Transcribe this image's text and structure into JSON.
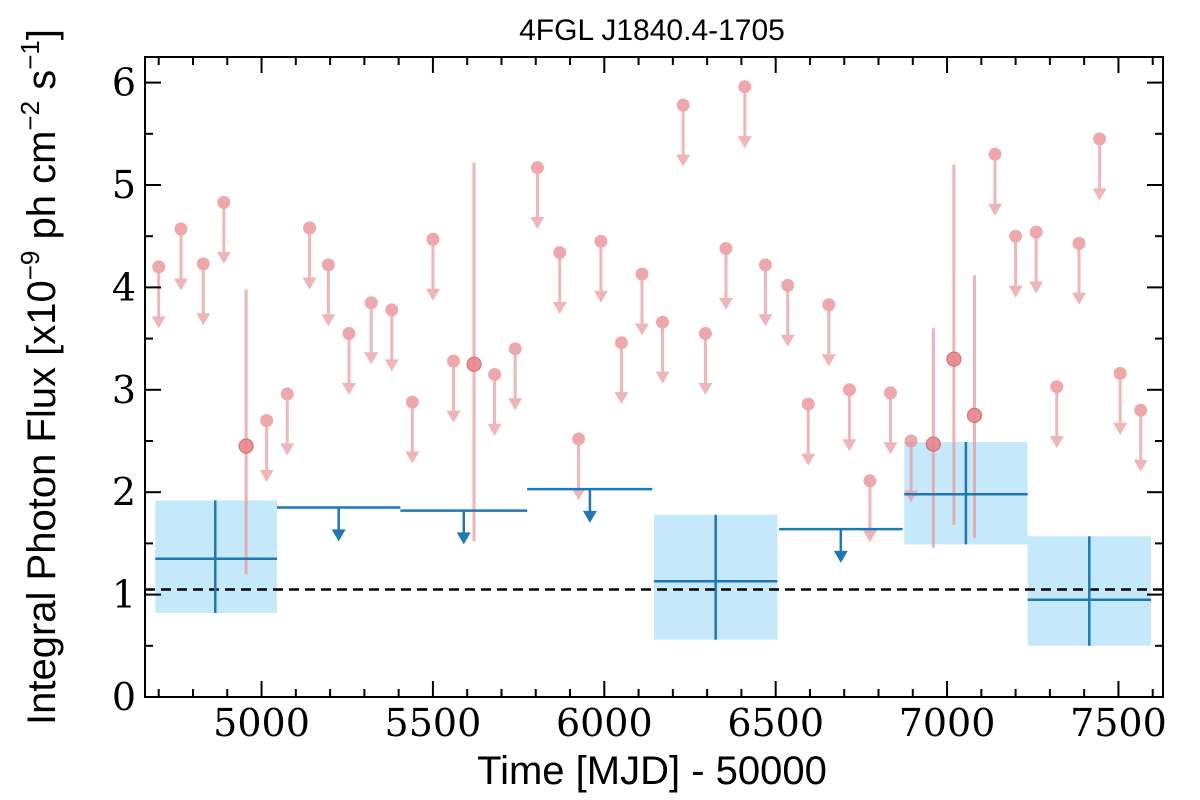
{
  "chart_data": {
    "type": "scatter",
    "title": "4FGL J1840.4-1705",
    "xlabel": "Time [MJD] - 50000",
    "ylabel": {
      "prefix": "Integral Photon Flux [x10",
      "exp1": "−9",
      "mid": " ph cm",
      "exp2": "−2",
      "mid2": " s",
      "exp3": "−1",
      "suffix": "]"
    },
    "xlim": [
      4660,
      7630
    ],
    "ylim": [
      0,
      6.25
    ],
    "xticks": [
      5000,
      5500,
      6000,
      6500,
      7000,
      7500
    ],
    "xtick_labels": [
      "5000",
      "5500",
      "6000",
      "6500",
      "7000",
      "7500"
    ],
    "yticks": [
      0,
      1,
      2,
      3,
      4,
      5,
      6
    ],
    "ytick_labels": [
      "0",
      "1",
      "2",
      "3",
      "4",
      "5",
      "6"
    ],
    "x_minor_step": 100,
    "y_minor_step": 0.5,
    "mean_flux": 1.05,
    "colors": {
      "short_points": "#e8868b",
      "short_arrows": "#e89a9e",
      "long_line": "#1f77b4",
      "long_box": "#c5e9fb",
      "mean_line": "#000000"
    },
    "series": [
      {
        "kind": "short-bin upper limits",
        "points": [
          {
            "x": 4700,
            "y": 4.2
          },
          {
            "x": 4765,
            "y": 4.57
          },
          {
            "x": 4830,
            "y": 4.23
          },
          {
            "x": 4890,
            "y": 4.83
          },
          {
            "x": 5015,
            "y": 2.7
          },
          {
            "x": 5075,
            "y": 2.96
          },
          {
            "x": 5140,
            "y": 4.58
          },
          {
            "x": 5195,
            "y": 4.22
          },
          {
            "x": 5255,
            "y": 3.55
          },
          {
            "x": 5320,
            "y": 3.85
          },
          {
            "x": 5380,
            "y": 3.78
          },
          {
            "x": 5440,
            "y": 2.88
          },
          {
            "x": 5500,
            "y": 4.47
          },
          {
            "x": 5560,
            "y": 3.28
          },
          {
            "x": 5680,
            "y": 3.15
          },
          {
            "x": 5740,
            "y": 3.4
          },
          {
            "x": 5805,
            "y": 5.17
          },
          {
            "x": 5870,
            "y": 4.34
          },
          {
            "x": 5925,
            "y": 2.52
          },
          {
            "x": 5990,
            "y": 4.45
          },
          {
            "x": 6050,
            "y": 3.46
          },
          {
            "x": 6110,
            "y": 4.13
          },
          {
            "x": 6170,
            "y": 3.66
          },
          {
            "x": 6230,
            "y": 5.78
          },
          {
            "x": 6295,
            "y": 3.55
          },
          {
            "x": 6355,
            "y": 4.38
          },
          {
            "x": 6410,
            "y": 5.96
          },
          {
            "x": 6470,
            "y": 4.22
          },
          {
            "x": 6535,
            "y": 4.02
          },
          {
            "x": 6595,
            "y": 2.86
          },
          {
            "x": 6655,
            "y": 3.83
          },
          {
            "x": 6715,
            "y": 3.0
          },
          {
            "x": 6775,
            "y": 2.11
          },
          {
            "x": 6835,
            "y": 2.97
          },
          {
            "x": 6895,
            "y": 2.5
          },
          {
            "x": 7140,
            "y": 5.3
          },
          {
            "x": 7200,
            "y": 4.5
          },
          {
            "x": 7260,
            "y": 4.54
          },
          {
            "x": 7320,
            "y": 3.03
          },
          {
            "x": 7385,
            "y": 4.43
          },
          {
            "x": 7445,
            "y": 5.45
          },
          {
            "x": 7505,
            "y": 3.16
          },
          {
            "x": 7565,
            "y": 2.8
          }
        ]
      },
      {
        "kind": "short-bin detections",
        "points": [
          {
            "x": 4955,
            "y": 2.45,
            "ylo": 1.2,
            "yhi": 3.98
          },
          {
            "x": 5620,
            "y": 3.25,
            "ylo": 1.52,
            "yhi": 5.22
          },
          {
            "x": 6960,
            "y": 2.47,
            "ylo": 1.46,
            "yhi": 3.6
          },
          {
            "x": 7020,
            "y": 3.3,
            "ylo": 1.68,
            "yhi": 5.2
          },
          {
            "x": 7080,
            "y": 2.75,
            "ylo": 1.55,
            "yhi": 4.12
          }
        ]
      },
      {
        "kind": "long-bin detections",
        "points": [
          {
            "x0": 4690,
            "x1": 5045,
            "x": 4865,
            "y": 1.35,
            "ylo": 0.82,
            "yhi": 1.92
          },
          {
            "x0": 6145,
            "x1": 6505,
            "x": 6325,
            "y": 1.13,
            "ylo": 0.56,
            "yhi": 1.78
          },
          {
            "x0": 6875,
            "x1": 7235,
            "x": 7055,
            "y": 1.98,
            "ylo": 1.49,
            "yhi": 2.49
          },
          {
            "x0": 7235,
            "x1": 7595,
            "x": 7415,
            "y": 0.95,
            "ylo": 0.5,
            "yhi": 1.57
          }
        ]
      },
      {
        "kind": "long-bin upper limits",
        "points": [
          {
            "x0": 5045,
            "x1": 5405,
            "x": 5225,
            "y": 1.85
          },
          {
            "x0": 5405,
            "x1": 5775,
            "x": 5590,
            "y": 1.82
          },
          {
            "x0": 5775,
            "x1": 6140,
            "x": 5958,
            "y": 2.03
          },
          {
            "x0": 6510,
            "x1": 6870,
            "x": 6690,
            "y": 1.64
          }
        ]
      }
    ]
  }
}
